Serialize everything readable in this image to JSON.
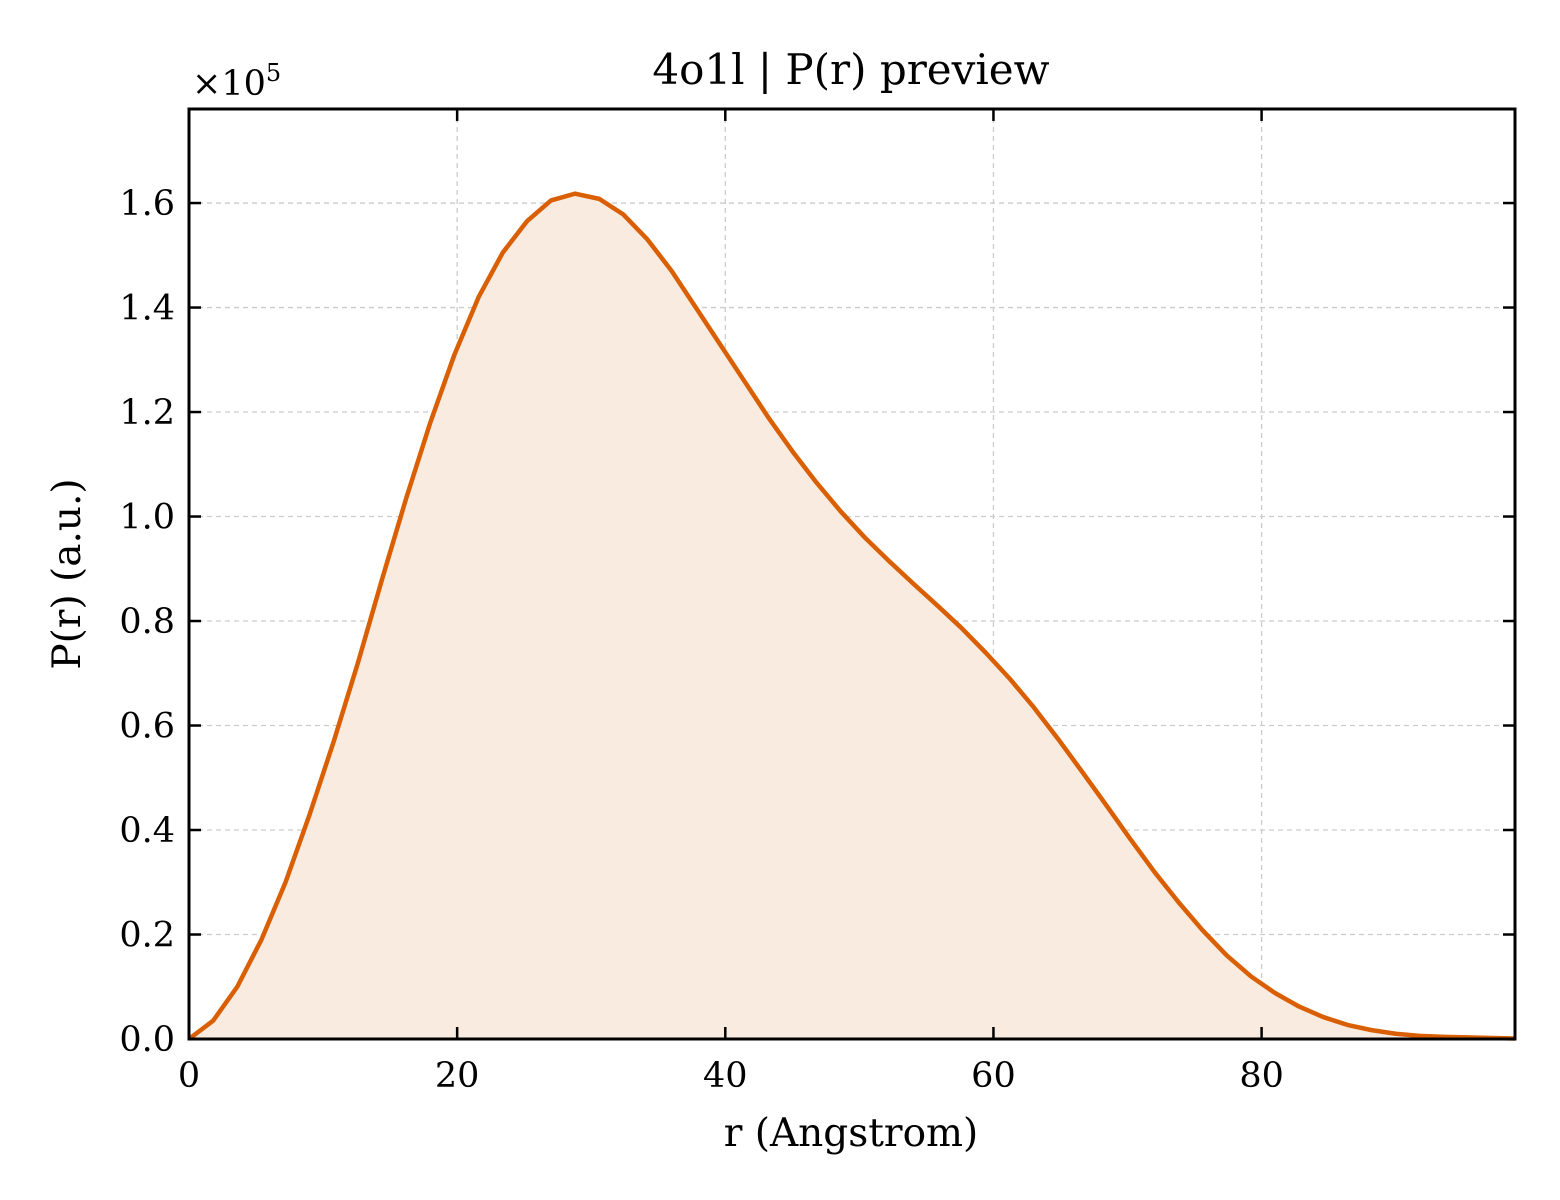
{
  "chart_data": {
    "type": "area",
    "title": "4o1l | P(r) preview",
    "xlabel": "r (Angstrom)",
    "ylabel": "P(r) (a.u.)",
    "y_offset_text": "×10",
    "y_offset_exponent": "5",
    "xlim": [
      0,
      98.9
    ],
    "ylim": [
      0,
      1.78
    ],
    "x_ticks": [
      0,
      20,
      40,
      60,
      80
    ],
    "x_tick_labels": [
      "0",
      "20",
      "40",
      "60",
      "80"
    ],
    "y_ticks": [
      0.0,
      0.2,
      0.4,
      0.6,
      0.8,
      1.0,
      1.2,
      1.4,
      1.6
    ],
    "y_tick_labels": [
      "0.0",
      "0.2",
      "0.4",
      "0.6",
      "0.8",
      "1.0",
      "1.2",
      "1.4",
      "1.6"
    ],
    "grid": true,
    "line_color": "#d95f02",
    "fill_color": "#f9ebe0",
    "series": [
      {
        "x": [
          0,
          1.8,
          3.6,
          5.4,
          7.2,
          9.0,
          10.8,
          12.6,
          14.4,
          16.2,
          18.0,
          19.8,
          21.6,
          23.4,
          25.2,
          27.0,
          28.8,
          30.6,
          32.4,
          34.2,
          36.0,
          37.8,
          39.6,
          41.4,
          43.2,
          45.0,
          46.8,
          48.6,
          50.4,
          52.2,
          54.0,
          55.8,
          57.6,
          59.4,
          61.2,
          63.0,
          64.8,
          66.6,
          68.4,
          70.2,
          72.0,
          73.8,
          75.6,
          77.4,
          79.2,
          81.0,
          82.8,
          84.6,
          86.4,
          88.2,
          90.0,
          91.8,
          93.6,
          95.4,
          97.2,
          98.9
        ],
        "values": [
          0.0,
          0.035,
          0.1,
          0.19,
          0.3,
          0.43,
          0.57,
          0.72,
          0.88,
          1.035,
          1.18,
          1.31,
          1.42,
          1.505,
          1.565,
          1.605,
          1.618,
          1.608,
          1.578,
          1.53,
          1.47,
          1.4,
          1.33,
          1.26,
          1.19,
          1.125,
          1.065,
          1.01,
          0.96,
          0.915,
          0.872,
          0.83,
          0.787,
          0.74,
          0.69,
          0.635,
          0.575,
          0.512,
          0.448,
          0.383,
          0.32,
          0.262,
          0.208,
          0.16,
          0.12,
          0.088,
          0.062,
          0.042,
          0.027,
          0.017,
          0.01,
          0.006,
          0.004,
          0.003,
          0.002,
          0.001
        ]
      }
    ]
  }
}
